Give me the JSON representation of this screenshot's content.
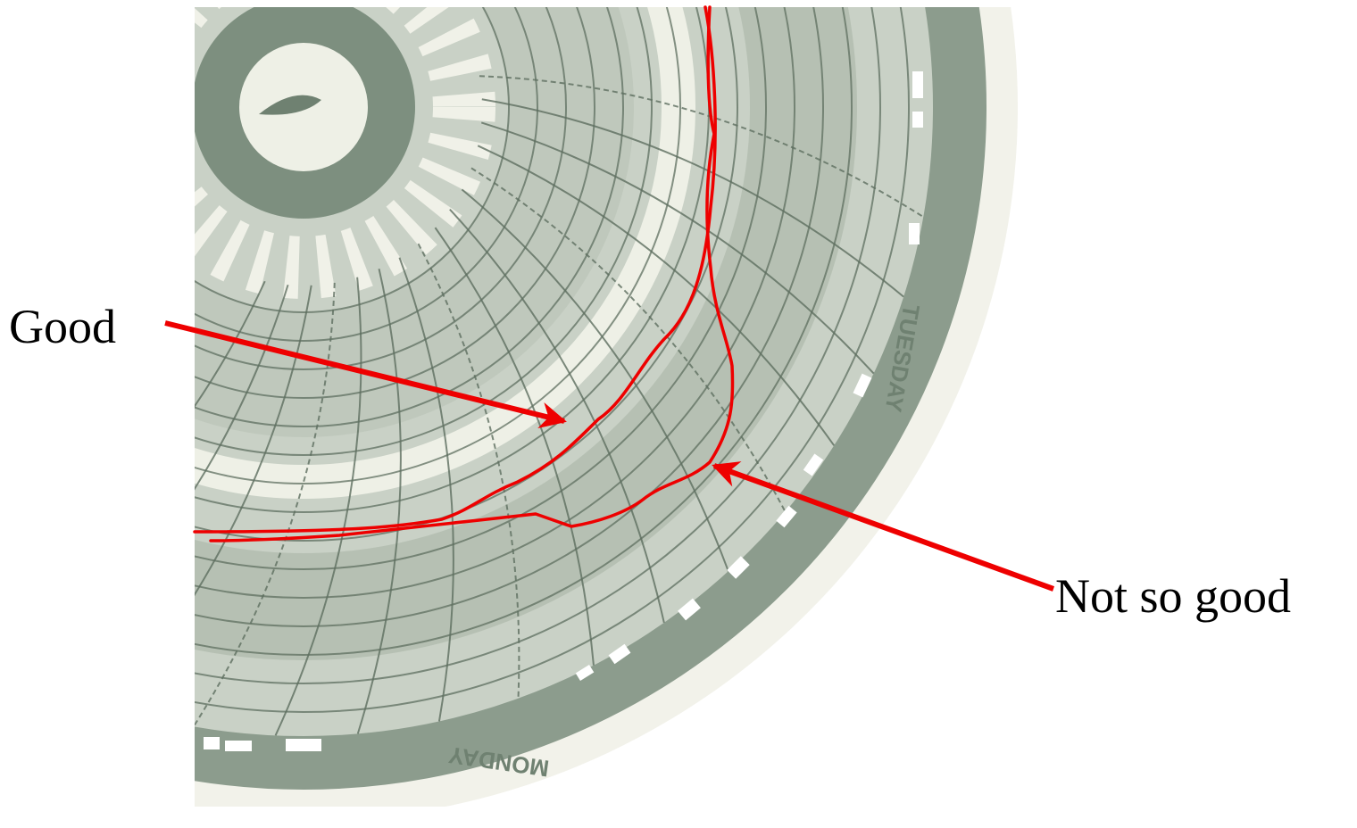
{
  "labels": {
    "good": "Good",
    "not_so_good": "Not so good"
  },
  "chart_ring_labels": {
    "tuesday": "TUESDAY",
    "monday": "MONDAY"
  },
  "colors": {
    "paper": "#c9d1c6",
    "grid": "#5e6f60",
    "band": "#8c9c8d",
    "light_band": "#eef0e6",
    "annotation": "#ee0000"
  }
}
